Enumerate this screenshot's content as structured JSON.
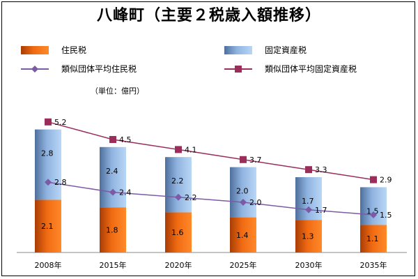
{
  "chart_data": {
    "type": "bar",
    "title": "八峰町（主要２税歳入額推移）",
    "unit_label": "（単位：億円）",
    "categories": [
      "2008年",
      "2015年",
      "2020年",
      "2025年",
      "2030年",
      "2035年"
    ],
    "series": [
      {
        "name": "住民税",
        "kind": "bar",
        "stack": "main",
        "values": [
          2.1,
          1.8,
          1.6,
          1.4,
          1.3,
          1.1
        ],
        "color": "#e3590e"
      },
      {
        "name": "固定資産税",
        "kind": "bar",
        "stack": "main",
        "values": [
          2.8,
          2.4,
          2.2,
          2.0,
          1.7,
          1.5
        ],
        "color": "#8db4e2"
      },
      {
        "name": "類似団体平均住民税",
        "kind": "line",
        "marker": "diamond",
        "values": [
          2.8,
          2.4,
          2.2,
          2.0,
          1.7,
          1.5
        ],
        "color": "#7b5aa6"
      },
      {
        "name": "類似団体平均固定資産税",
        "kind": "line",
        "marker": "square",
        "values": [
          5.2,
          4.5,
          4.1,
          3.7,
          3.3,
          2.9
        ],
        "color": "#9b2d5b"
      }
    ],
    "ylim": [
      0,
      6.0
    ],
    "grid": false,
    "legend": "top"
  }
}
